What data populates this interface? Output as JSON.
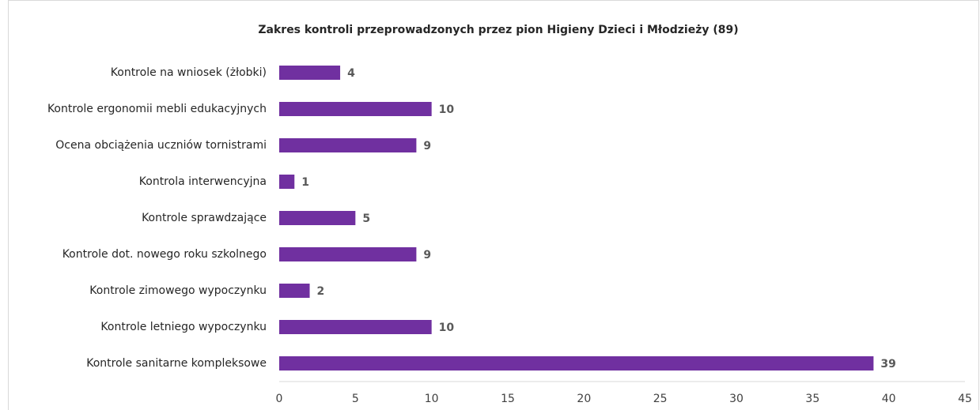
{
  "chart_data": {
    "type": "bar",
    "orientation": "horizontal",
    "title": "Zakres kontroli przeprowadzonych przez pion Higieny Dzieci i Młodzieży (89)",
    "categories": [
      "Kontrole na wniosek (żłobki)",
      "Kontrole ergonomii mebli edukacyjnych",
      "Ocena obciążenia uczniów tornistrami",
      "Kontrola interwencyjna",
      "Kontrole sprawdzające",
      "Kontrole dot. nowego roku szkolnego",
      "Kontrole zimowego wypoczynku",
      "Kontrole letniego wypoczynku",
      "Kontrole sanitarne kompleksowe"
    ],
    "values": [
      4,
      10,
      9,
      1,
      5,
      9,
      2,
      10,
      39
    ],
    "color": "#7030a0",
    "xlim": [
      0,
      45
    ],
    "xticks": [
      0,
      5,
      10,
      15,
      20,
      25,
      30,
      35,
      40,
      45
    ],
    "grid": false
  }
}
